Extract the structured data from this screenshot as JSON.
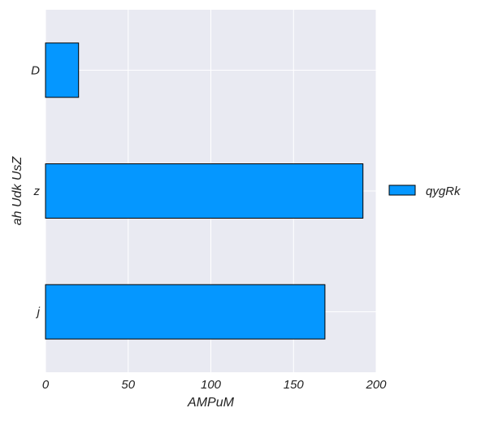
{
  "chart_data": {
    "type": "bar",
    "orientation": "horizontal",
    "categories": [
      "D",
      "z",
      "j"
    ],
    "series": [
      {
        "name": "qygRk",
        "values": [
          20,
          192,
          169
        ]
      }
    ],
    "xlabel": "AMPuM",
    "ylabel": "ah Udk UsZ",
    "xlim": [
      0,
      200
    ],
    "xticks": [
      "0",
      "50",
      "100",
      "150",
      "200"
    ],
    "grid": true,
    "legend_position": "right",
    "colors": {
      "bar": "#0597ff",
      "bar_edge": "#000000",
      "plot_background": "#e9eaf2",
      "grid": "#ffffff"
    }
  }
}
